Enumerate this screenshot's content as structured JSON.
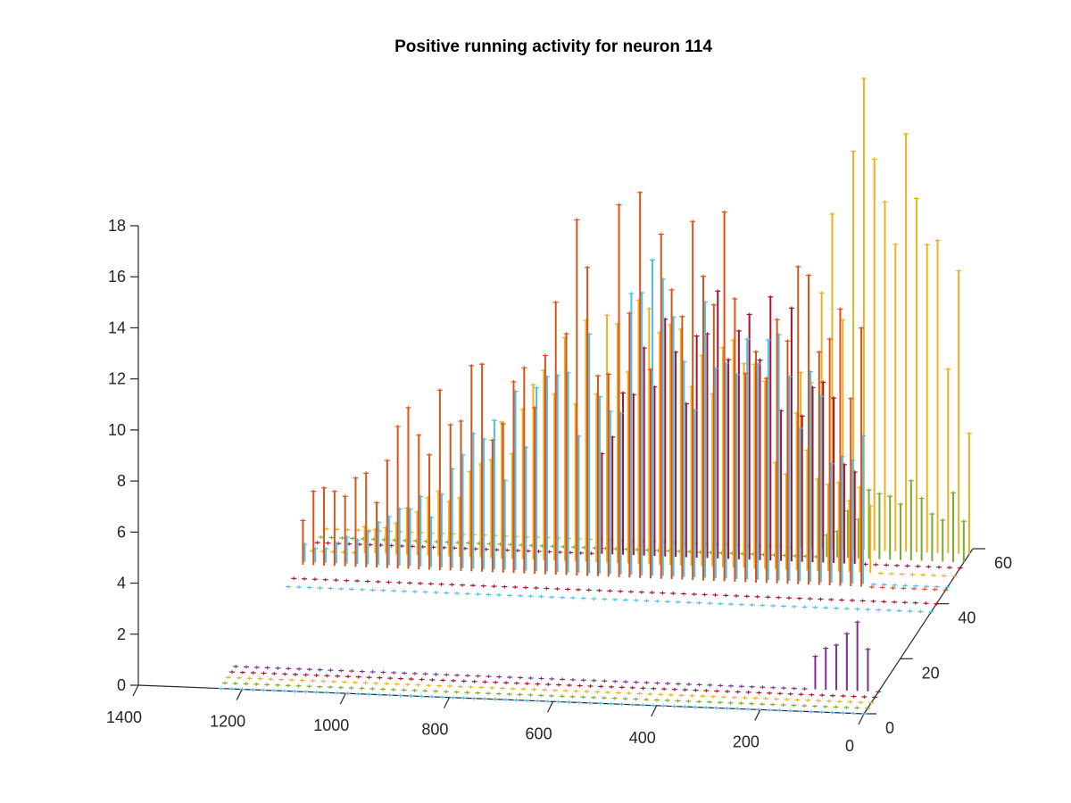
{
  "chart_data": {
    "type": "stem3d",
    "title": "Positive running activity for neuron 114",
    "xlabel": "",
    "ylabel": "",
    "zlabel": "",
    "x_axis": {
      "range": [
        0,
        1400
      ],
      "ticks": [
        "1400",
        "1200",
        "1000",
        "800",
        "600",
        "400",
        "200",
        "0"
      ]
    },
    "y_axis": {
      "range": [
        0,
        60
      ],
      "ticks": [
        "0",
        "20",
        "40",
        "60"
      ]
    },
    "z_axis": {
      "range": [
        0,
        18
      ],
      "ticks": [
        "0",
        "2",
        "4",
        "6",
        "8",
        "10",
        "12",
        "14",
        "16",
        "18"
      ]
    },
    "grid": false,
    "legend": "none",
    "series": [
      {
        "color": "#EDB120",
        "y": 58,
        "x_range": [
          0,
          1240
        ],
        "peak_x": 150,
        "peak": 18.8,
        "spread": 120,
        "active_x": [
          0,
          330
        ],
        "base": 0
      },
      {
        "color": "#77AC30",
        "y": 55,
        "x_range": [
          0,
          1240
        ],
        "peak_x": 100,
        "peak": 3.0,
        "spread": 140,
        "active_x": [
          0,
          280
        ],
        "base": 0
      },
      {
        "color": "#A2142F",
        "y": 53,
        "x_range": [
          0,
          1240
        ],
        "peak_x": 450,
        "peak": 11.0,
        "spread": 200,
        "active_x": [
          200,
          700
        ],
        "base": 0
      },
      {
        "color": "#EDB120",
        "y": 50,
        "x_range": [
          0,
          1240
        ],
        "peak_x": 580,
        "peak": 10.0,
        "spread": 260,
        "active_x": [
          150,
          1150
        ],
        "base": 0
      },
      {
        "color": "#4DBEEE",
        "y": 46,
        "x_range": [
          0,
          1240
        ],
        "peak_x": 520,
        "peak": 11.5,
        "spread": 300,
        "active_x": [
          150,
          1250
        ],
        "base": 0
      },
      {
        "color": "#D95319",
        "y": 45,
        "x_range": [
          0,
          1240
        ],
        "peak_x": 520,
        "peak": 14.5,
        "spread": 380,
        "active_x": [
          150,
          1250
        ],
        "base": 0
      },
      {
        "color": "#A2142F",
        "y": 40,
        "x_range": [
          0,
          1240
        ],
        "peak_x": 0,
        "peak": 0,
        "spread": 1,
        "active_x": [
          0,
          0
        ],
        "base": 0
      },
      {
        "color": "#4DBEEE",
        "y": 37,
        "x_range": [
          0,
          1240
        ],
        "peak_x": 0,
        "peak": 0,
        "spread": 1,
        "active_x": [
          0,
          0
        ],
        "base": 0
      },
      {
        "color": "#7E2F8E",
        "y": 8,
        "x_range": [
          0,
          1240
        ],
        "peak_x": 60,
        "peak": 2.6,
        "spread": 60,
        "active_x": [
          20,
          130
        ],
        "base": 0
      },
      {
        "color": "#A2142F",
        "y": 6,
        "x_range": [
          0,
          1240
        ],
        "peak_x": 0,
        "peak": 0,
        "spread": 1,
        "active_x": [
          0,
          0
        ],
        "base": 0
      },
      {
        "color": "#EDB120",
        "y": 4,
        "x_range": [
          0,
          1240
        ],
        "peak_x": 0,
        "peak": 0,
        "spread": 1,
        "active_x": [
          0,
          0
        ],
        "base": 0
      },
      {
        "color": "#77AC30",
        "y": 2,
        "x_range": [
          0,
          1240
        ],
        "peak_x": 0,
        "peak": 0,
        "spread": 1,
        "active_x": [
          0,
          0
        ],
        "base": 0
      },
      {
        "color": "#4DBEEE",
        "y": 0,
        "x_range": [
          0,
          1240
        ],
        "peak_x": 0,
        "peak": 0,
        "spread": 1,
        "active_x": [
          0,
          0
        ],
        "base": 0
      }
    ]
  }
}
